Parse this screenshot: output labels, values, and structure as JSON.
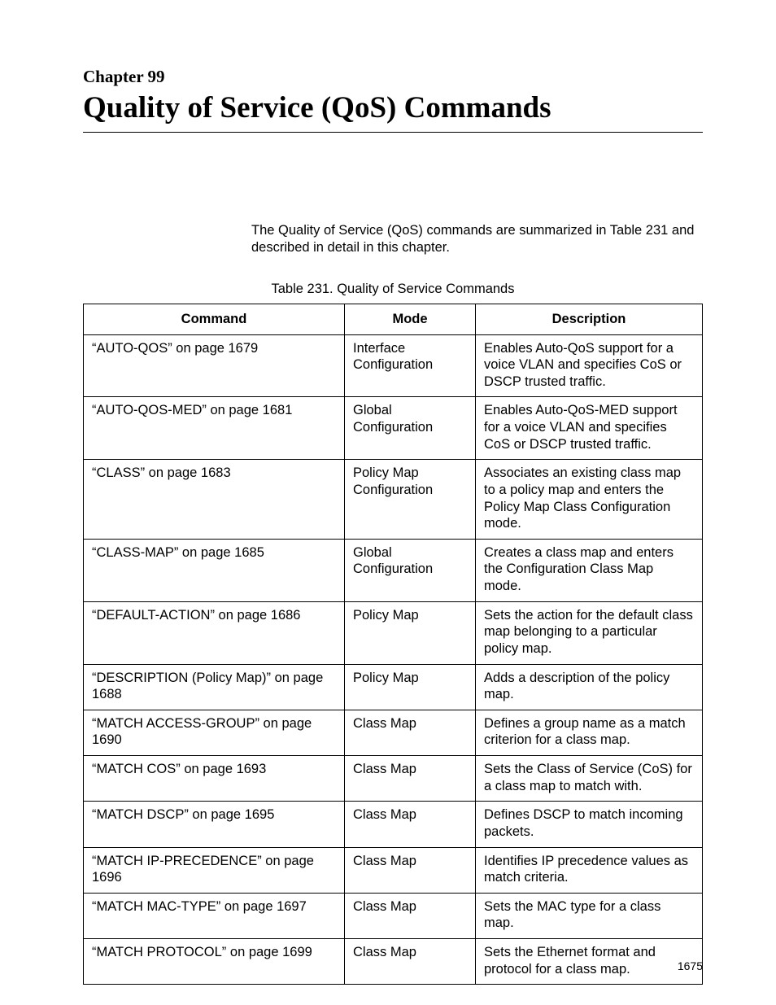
{
  "chapter": {
    "label": "Chapter 99",
    "title": "Quality of Service (QoS) Commands"
  },
  "intro": "The Quality of Service (QoS) commands are summarized in Table 231 and described in detail in this chapter.",
  "table": {
    "caption": "Table 231. Quality of Service Commands",
    "columns": [
      "Command",
      "Mode",
      "Description"
    ],
    "rows": [
      {
        "command": "“AUTO-QOS” on page 1679",
        "mode": "Interface Configuration",
        "description": "Enables Auto-QoS support for a voice VLAN and specifies CoS or DSCP trusted traffic."
      },
      {
        "command": "“AUTO-QOS-MED” on page 1681",
        "mode": "Global Configuration",
        "description": "Enables Auto-QoS-MED support for a voice VLAN and specifies CoS or DSCP trusted traffic."
      },
      {
        "command": "“CLASS” on page 1683",
        "mode": "Policy Map Configuration",
        "description": "Associates an existing class map to a policy map and enters the Policy Map Class Configuration mode."
      },
      {
        "command": "“CLASS-MAP” on page 1685",
        "mode": "Global Configuration",
        "description": "Creates a class map and enters the Configuration Class Map mode."
      },
      {
        "command": "“DEFAULT-ACTION” on page 1686",
        "mode": "Policy Map",
        "description": "Sets the action for the default class map belonging to a particular policy map."
      },
      {
        "command": "“DESCRIPTION (Policy Map)” on page 1688",
        "mode": "Policy Map",
        "description": "Adds a description of the policy map."
      },
      {
        "command": "“MATCH ACCESS-GROUP” on page 1690",
        "mode": "Class Map",
        "description": "Defines a group name as a match criterion for a class map."
      },
      {
        "command": "“MATCH COS” on page 1693",
        "mode": "Class Map",
        "description": "Sets the Class of Service (CoS) for a class map to match with."
      },
      {
        "command": "“MATCH DSCP” on page 1695",
        "mode": "Class Map",
        "description": "Defines DSCP to match incoming packets."
      },
      {
        "command": "“MATCH IP-PRECEDENCE” on page 1696",
        "mode": "Class Map",
        "description": "Identifies IP precedence values as match criteria."
      },
      {
        "command": "“MATCH MAC-TYPE” on page 1697",
        "mode": "Class Map",
        "description": "Sets the MAC type for a class map."
      },
      {
        "command": "“MATCH PROTOCOL” on page 1699",
        "mode": "Class Map",
        "description": "Sets the Ethernet format and protocol for a class map."
      }
    ]
  },
  "page_number": "1675"
}
